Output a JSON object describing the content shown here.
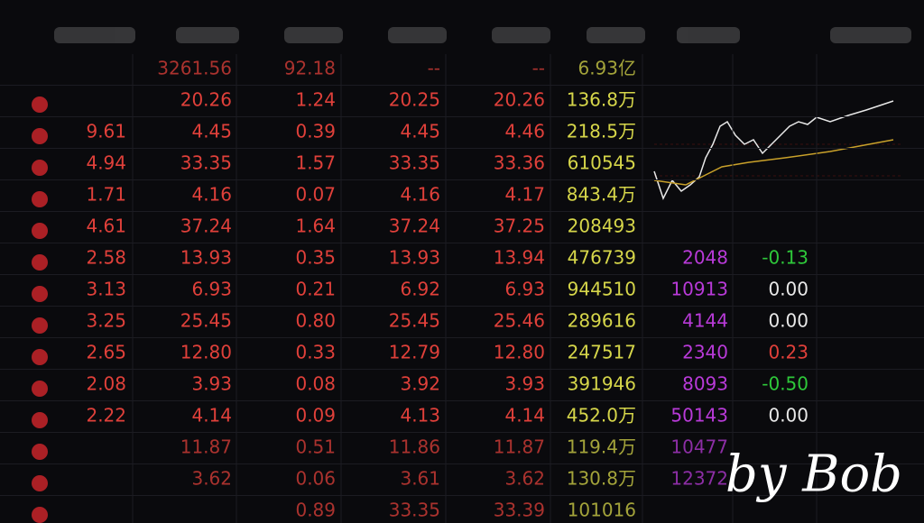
{
  "table": {
    "rows": [
      [
        null,
        "3261.56",
        "92.18",
        "--",
        "--",
        "6.93亿",
        null,
        null
      ],
      [
        null,
        "20.26",
        "1.24",
        "20.25",
        "20.26",
        "136.8万",
        null,
        null
      ],
      [
        "9.61",
        "4.45",
        "0.39",
        "4.45",
        "4.46",
        "218.5万",
        null,
        null
      ],
      [
        "4.94",
        "33.35",
        "1.57",
        "33.35",
        "33.36",
        "610545",
        null,
        null
      ],
      [
        "1.71",
        "4.16",
        "0.07",
        "4.16",
        "4.17",
        "843.4万",
        null,
        null
      ],
      [
        "4.61",
        "37.24",
        "1.64",
        "37.24",
        "37.25",
        "208493",
        null,
        null
      ],
      [
        "2.58",
        "13.93",
        "0.35",
        "13.93",
        "13.94",
        "476739",
        "2048",
        "-0.13"
      ],
      [
        "3.13",
        "6.93",
        "0.21",
        "6.92",
        "6.93",
        "944510",
        "10913",
        "0.00"
      ],
      [
        "3.25",
        "25.45",
        "0.80",
        "25.45",
        "25.46",
        "289616",
        "4144",
        "0.00"
      ],
      [
        "2.65",
        "12.80",
        "0.33",
        "12.79",
        "12.80",
        "247517",
        "2340",
        "0.23"
      ],
      [
        "2.08",
        "3.93",
        "0.08",
        "3.92",
        "3.93",
        "391946",
        "8093",
        "-0.50"
      ],
      [
        "2.22",
        "4.14",
        "0.09",
        "4.13",
        "4.14",
        "452.0万",
        "50143",
        "0.00"
      ],
      [
        null,
        "11.87",
        "0.51",
        "11.86",
        "11.87",
        "119.4万",
        "10477",
        null
      ],
      [
        null,
        "3.62",
        "0.06",
        "3.61",
        "3.62",
        "130.8万",
        "12372",
        null
      ],
      [
        null,
        null,
        "0.89",
        "33.35",
        "33.39",
        "101016",
        null,
        null
      ]
    ]
  },
  "watermark": "by Bob"
}
